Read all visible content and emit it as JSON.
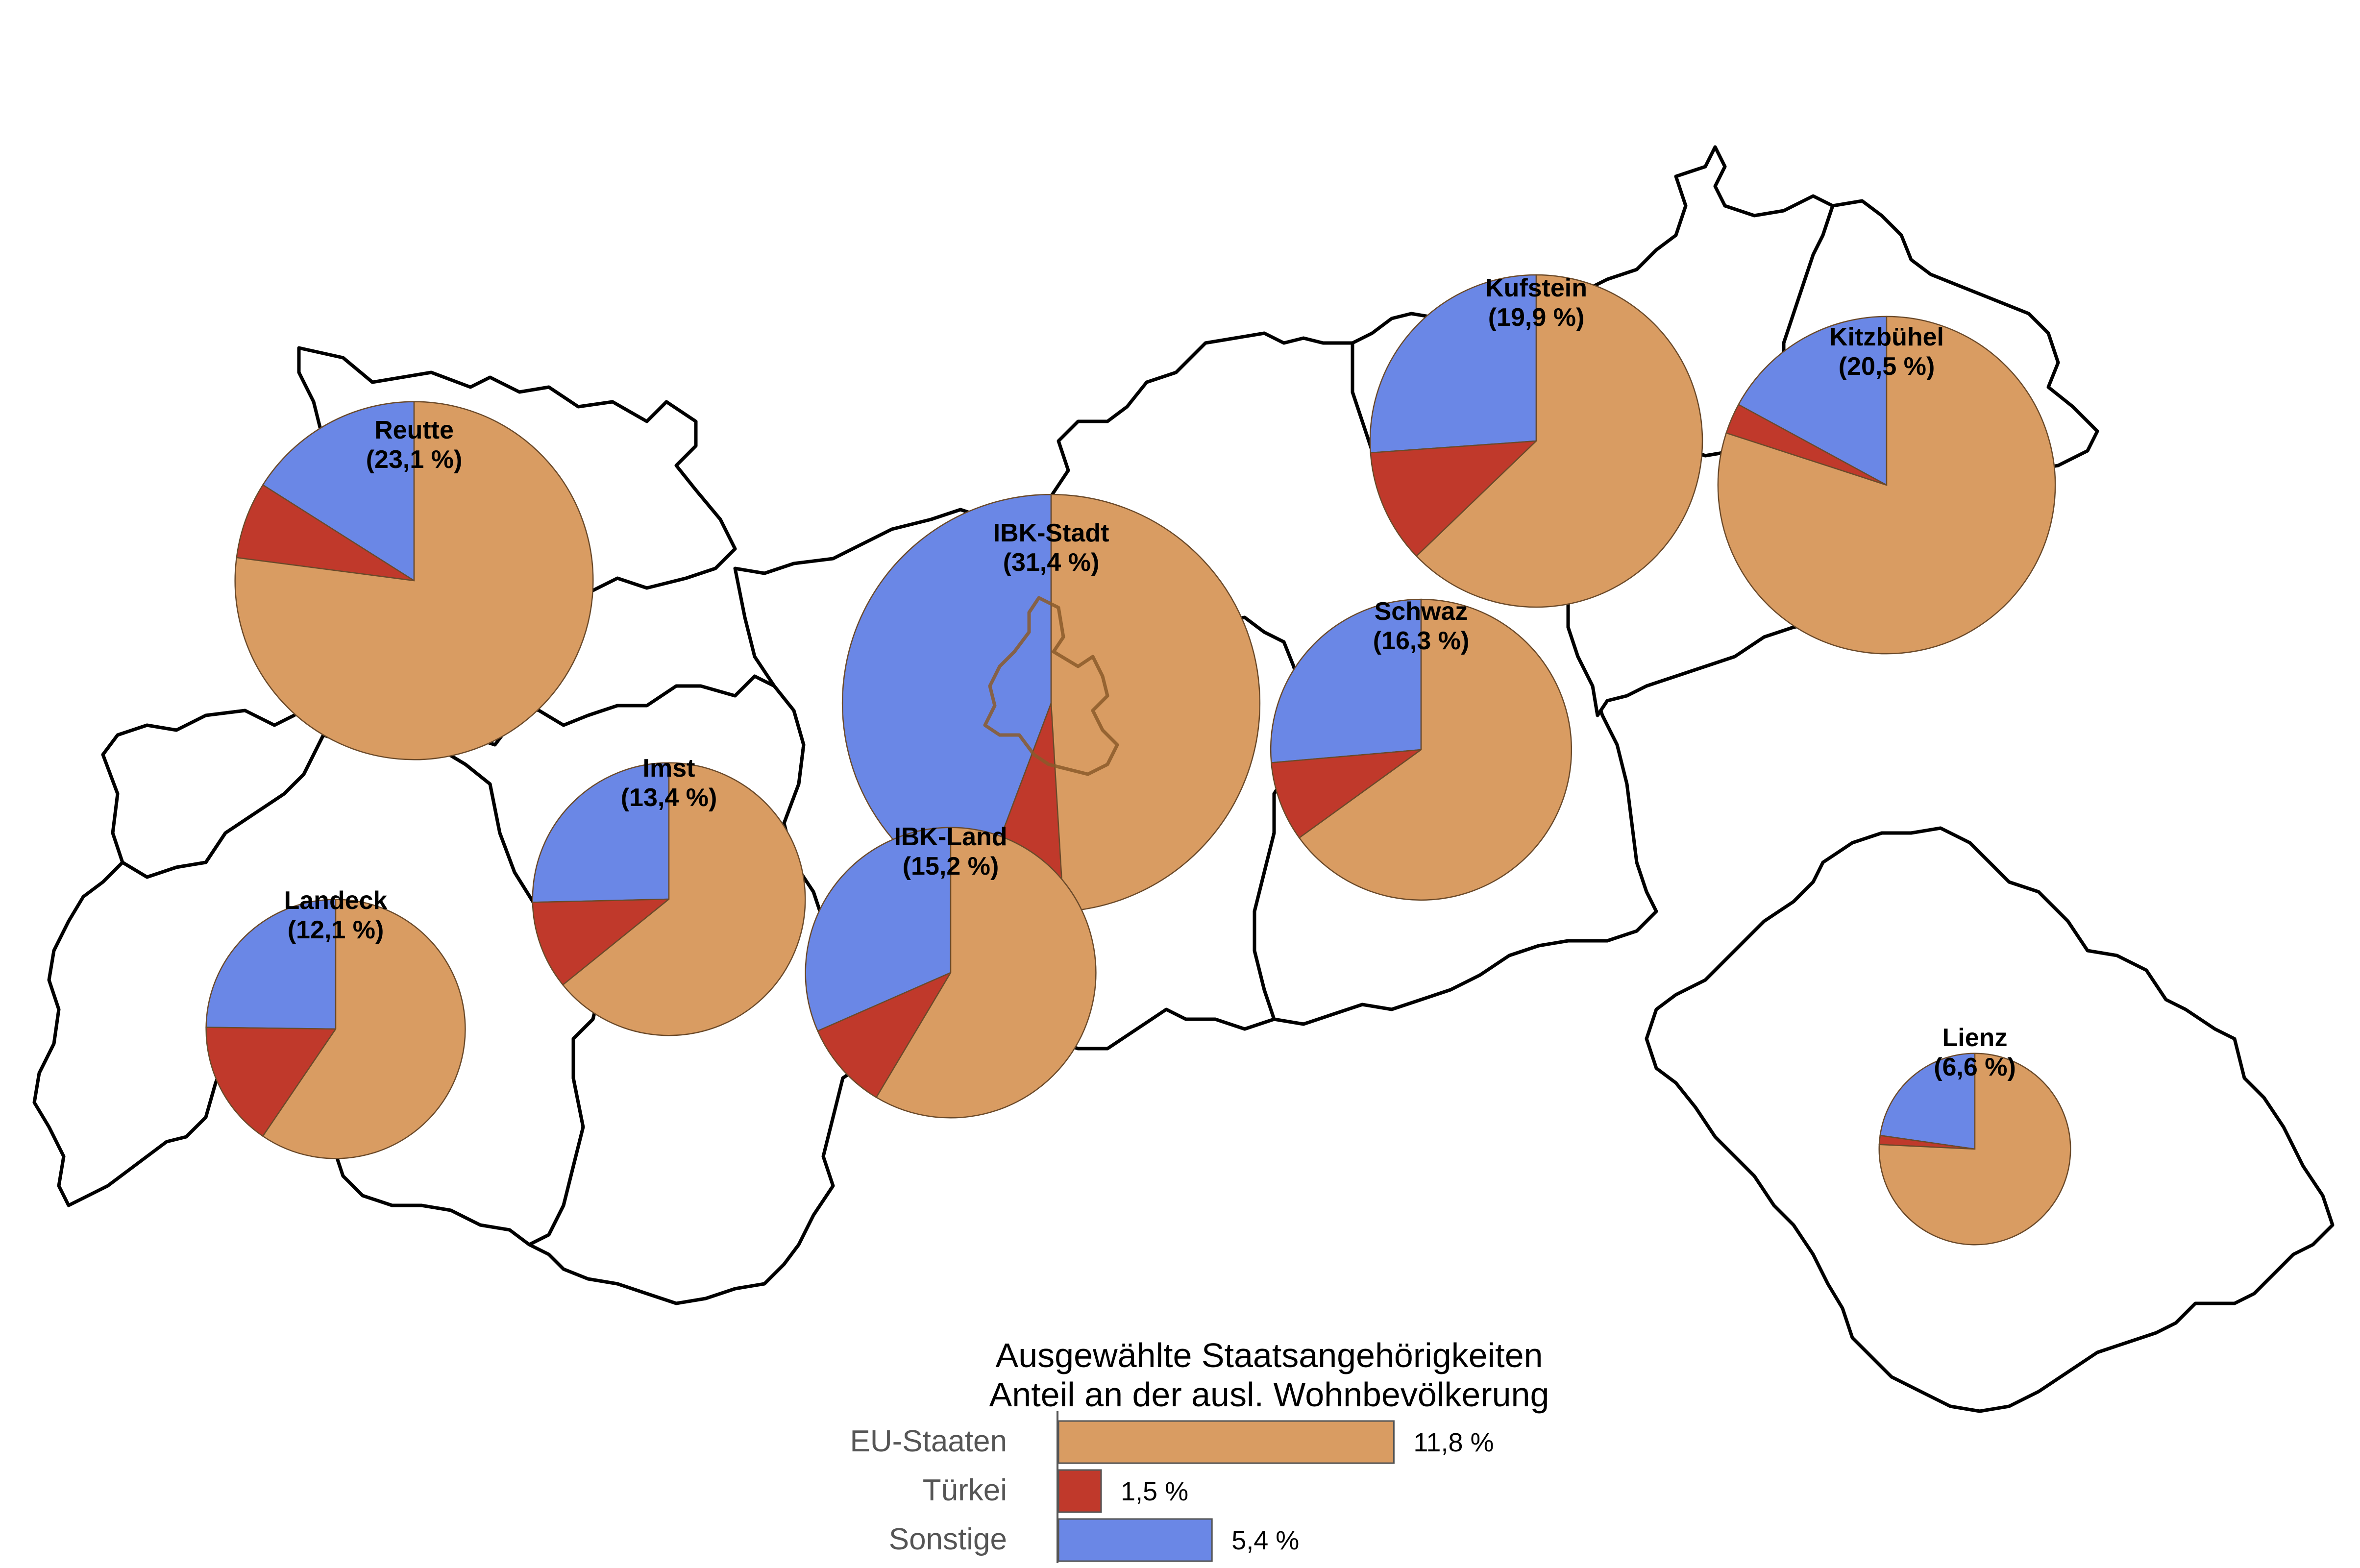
{
  "colors": {
    "eu": "#d99c62",
    "turkey": "#c0392b",
    "other": "#6a87e6"
  },
  "districts": [
    {
      "id": "reutte",
      "name": "Reutte",
      "percent_label": "(23,1 %)",
      "total": 23.1,
      "shares": {
        "eu": 17.8,
        "turkey": 1.6,
        "other": 3.7
      }
    },
    {
      "id": "landeck",
      "name": "Landeck",
      "percent_label": "(12,1 %)",
      "total": 12.1,
      "shares": {
        "eu": 7.2,
        "turkey": 1.9,
        "other": 3.0
      }
    },
    {
      "id": "imst",
      "name": "Imst",
      "percent_label": "(13,4 %)",
      "total": 13.4,
      "shares": {
        "eu": 8.6,
        "turkey": 1.4,
        "other": 3.4
      }
    },
    {
      "id": "ibk-stadt",
      "name": "IBK-Stadt",
      "percent_label": "(31,4 %)",
      "total": 31.4,
      "shares": {
        "eu": 15.4,
        "turkey": 2.1,
        "other": 13.9
      }
    },
    {
      "id": "ibk-land",
      "name": "IBK-Land",
      "percent_label": "(15,2 %)",
      "total": 15.2,
      "shares": {
        "eu": 8.9,
        "turkey": 1.5,
        "other": 4.8
      }
    },
    {
      "id": "schwaz",
      "name": "Schwaz",
      "percent_label": "(16,3 %)",
      "total": 16.3,
      "shares": {
        "eu": 10.6,
        "turkey": 1.4,
        "other": 4.3
      }
    },
    {
      "id": "kufstein",
      "name": "Kufstein",
      "percent_label": "(19,9 %)",
      "total": 19.9,
      "shares": {
        "eu": 12.5,
        "turkey": 2.2,
        "other": 5.2
      }
    },
    {
      "id": "kitzbuehel",
      "name": "Kitzbühel",
      "percent_label": "(20,5 %)",
      "total": 20.5,
      "shares": {
        "eu": 16.4,
        "turkey": 0.6,
        "other": 3.5
      }
    },
    {
      "id": "lienz",
      "name": "Lienz",
      "percent_label": "(6,6 %)",
      "total": 6.6,
      "shares": {
        "eu": 5.0,
        "turkey": 0.1,
        "other": 1.5
      }
    }
  ],
  "legend": {
    "title_line1": "Ausgewählte Staatsangehörigkeiten",
    "title_line2": "Anteil an der ausl. Wohnbevölkerung",
    "items": [
      {
        "key": "eu",
        "label": "EU-Staaten",
        "value": 11.8,
        "value_label": "11,8 %"
      },
      {
        "key": "turkey",
        "label": "Türkei",
        "value": 1.5,
        "value_label": "1,5 %"
      },
      {
        "key": "other",
        "label": "Sonstige",
        "value": 5.4,
        "value_label": "5,4 %"
      }
    ]
  }
}
